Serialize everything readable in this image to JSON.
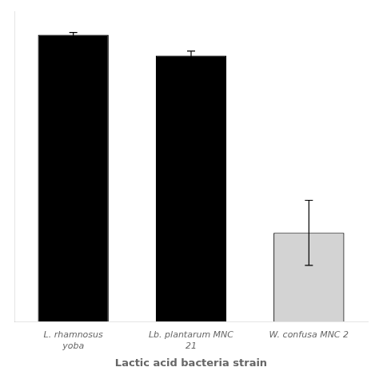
{
  "chart_data": {
    "type": "bar",
    "categories": [
      "L. rhamnosus\nyoba",
      "Lb. plantarum MNC\n21",
      "W. confusa MNC 2"
    ],
    "values": [
      97,
      90,
      30
    ],
    "errors": [
      0.8,
      1.5,
      11.0
    ],
    "colors": [
      "black",
      "black",
      "lightgray"
    ],
    "xlabel": "Lactic acid bacteria strain",
    "ylim": [
      0,
      105
    ],
    "grid": false,
    "tick_labels": "x"
  }
}
